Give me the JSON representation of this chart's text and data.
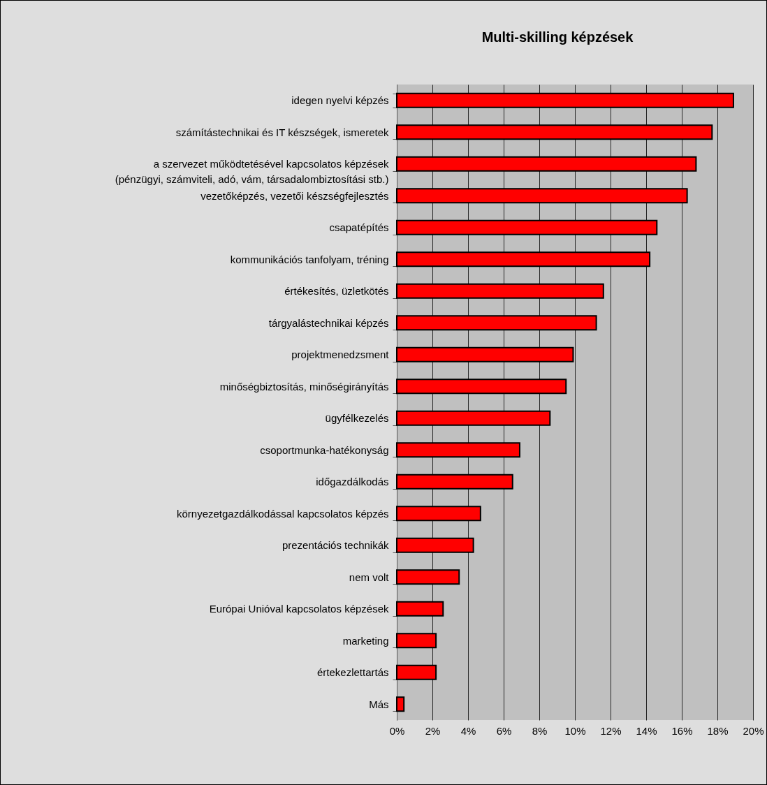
{
  "chart_data": {
    "type": "bar",
    "orientation": "horizontal",
    "title": "Multi-skilling képzések",
    "categories": [
      "idegen nyelvi képzés",
      "számítástechnikai és IT készségek, ismeretek",
      "a szervezet működtetésével kapcsolatos képzések\n(pénzügyi, számviteli, adó, vám, társadalombiztosítási stb.)",
      "vezetőképzés, vezetői készségfejlesztés",
      "csapatépítés",
      "kommunikációs tanfolyam, tréning",
      "értékesítés, üzletkötés",
      "tárgyalástechnikai képzés",
      "projektmenedzsment",
      "minőségbiztosítás, minőségirányítás",
      "ügyfélkezelés",
      "csoportmunka-hatékonyság",
      "időgazdálkodás",
      "környezetgazdálkodással kapcsolatos képzés",
      "prezentációs technikák",
      "nem volt",
      "Európai Unióval kapcsolatos képzések",
      "marketing",
      "értekezlettartás",
      "Más"
    ],
    "values": [
      18.9,
      17.7,
      16.8,
      16.3,
      14.6,
      14.2,
      11.6,
      11.2,
      9.9,
      9.5,
      8.6,
      6.9,
      6.5,
      4.7,
      4.3,
      3.5,
      2.6,
      2.2,
      2.2,
      0.4
    ],
    "color": "#ff0000",
    "xlim": [
      0,
      20
    ],
    "xticks": [
      {
        "value": 0,
        "label": "0%"
      },
      {
        "value": 2,
        "label": "2%"
      },
      {
        "value": 4,
        "label": "4%"
      },
      {
        "value": 6,
        "label": "6%"
      },
      {
        "value": 8,
        "label": "8%"
      },
      {
        "value": 10,
        "label": "10%"
      },
      {
        "value": 12,
        "label": "12%"
      },
      {
        "value": 14,
        "label": "14%"
      },
      {
        "value": 16,
        "label": "16%"
      },
      {
        "value": 18,
        "label": "18%"
      },
      {
        "value": 20,
        "label": "20%"
      }
    ],
    "grid": "x"
  }
}
